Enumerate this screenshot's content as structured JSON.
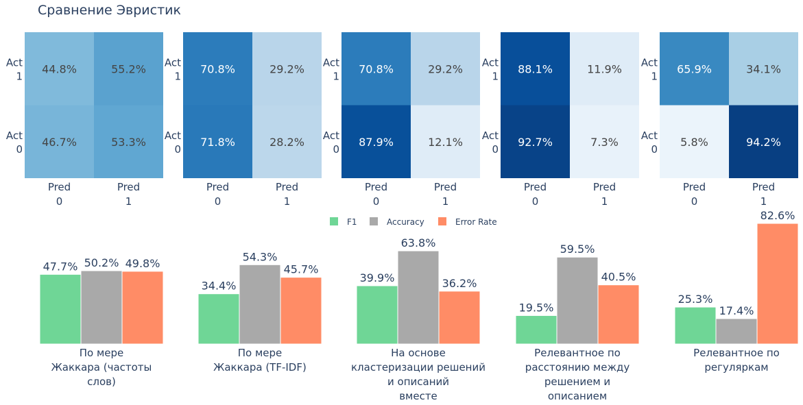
{
  "title": "Сравнение Эвристик",
  "chart_data": [
    {
      "type": "heatmap",
      "colorscale": "Blues",
      "zrange": [
        0,
        100
      ],
      "y_labels": [
        [
          "Act",
          "1"
        ],
        [
          "Act",
          "0"
        ]
      ],
      "x_labels": [
        [
          "Pred",
          "0"
        ],
        [
          "Pred",
          "1"
        ]
      ],
      "panels": [
        {
          "cells": [
            [
              44.8,
              55.2
            ],
            [
              46.7,
              53.3
            ]
          ]
        },
        {
          "cells": [
            [
              70.8,
              29.2
            ],
            [
              71.8,
              28.2
            ]
          ]
        },
        {
          "cells": [
            [
              70.8,
              29.2
            ],
            [
              87.9,
              12.1
            ]
          ]
        },
        {
          "cells": [
            [
              88.1,
              11.9
            ],
            [
              92.7,
              7.3
            ]
          ]
        },
        {
          "cells": [
            [
              65.9,
              34.1
            ],
            [
              5.8,
              94.2
            ]
          ]
        }
      ]
    },
    {
      "type": "bar",
      "legend_position": "top-center",
      "categories": [
        [
          "По мере",
          "Жаккара (частоты",
          "слов)"
        ],
        [
          "По мере",
          "Жаккара (TF-IDF)"
        ],
        [
          "На основе",
          "кластеризации решений",
          "и описаний",
          "вместе"
        ],
        [
          "Релевантное по",
          "расстоянию между",
          "решением и",
          "описанием"
        ],
        [
          "Релевантное по",
          "регуляркам"
        ]
      ],
      "series": [
        {
          "name": "F1",
          "color": "#6fd696",
          "values": [
            47.7,
            34.4,
            39.9,
            19.5,
            25.3
          ]
        },
        {
          "name": "Accuracy",
          "color": "#a9a9a9",
          "values": [
            50.2,
            54.3,
            63.8,
            59.5,
            17.4
          ]
        },
        {
          "name": "Error Rate",
          "color": "#ff8c66",
          "values": [
            49.8,
            45.7,
            36.2,
            40.5,
            82.6
          ]
        }
      ],
      "ylim": [
        0,
        82.6
      ]
    }
  ]
}
